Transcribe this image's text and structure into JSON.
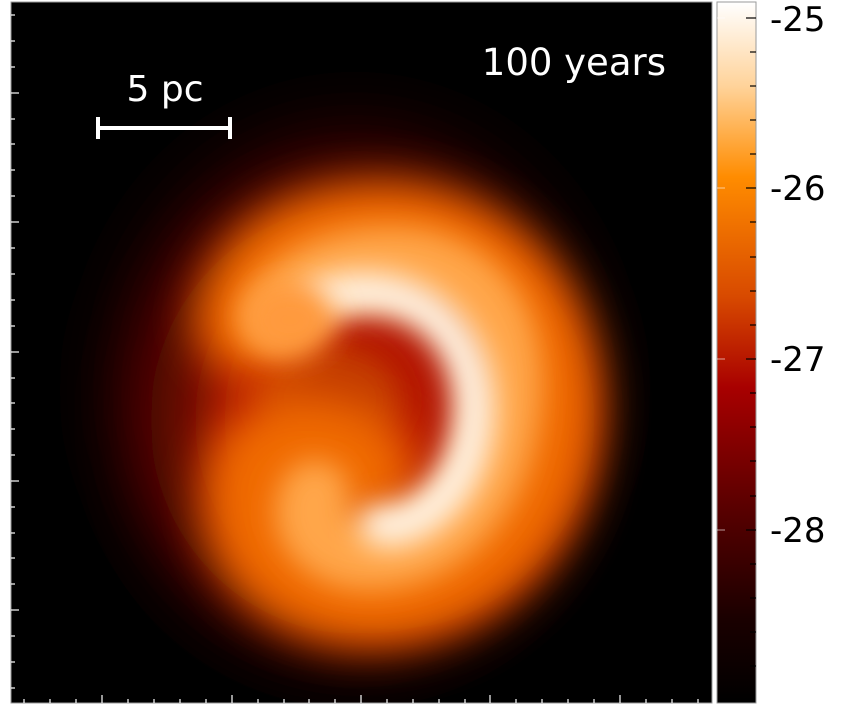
{
  "panel": {
    "time_label": "100 years",
    "scale_bar_label": "5 pc"
  },
  "colorbar": {
    "colormap": "gist_heat",
    "ticks": [
      "-25",
      "-26",
      "-27",
      "-28"
    ],
    "colors": {
      "high": "#ffffff",
      "mid_high": "#ff8c00",
      "mid_low": "#b30000",
      "low": "#000000"
    }
  }
}
